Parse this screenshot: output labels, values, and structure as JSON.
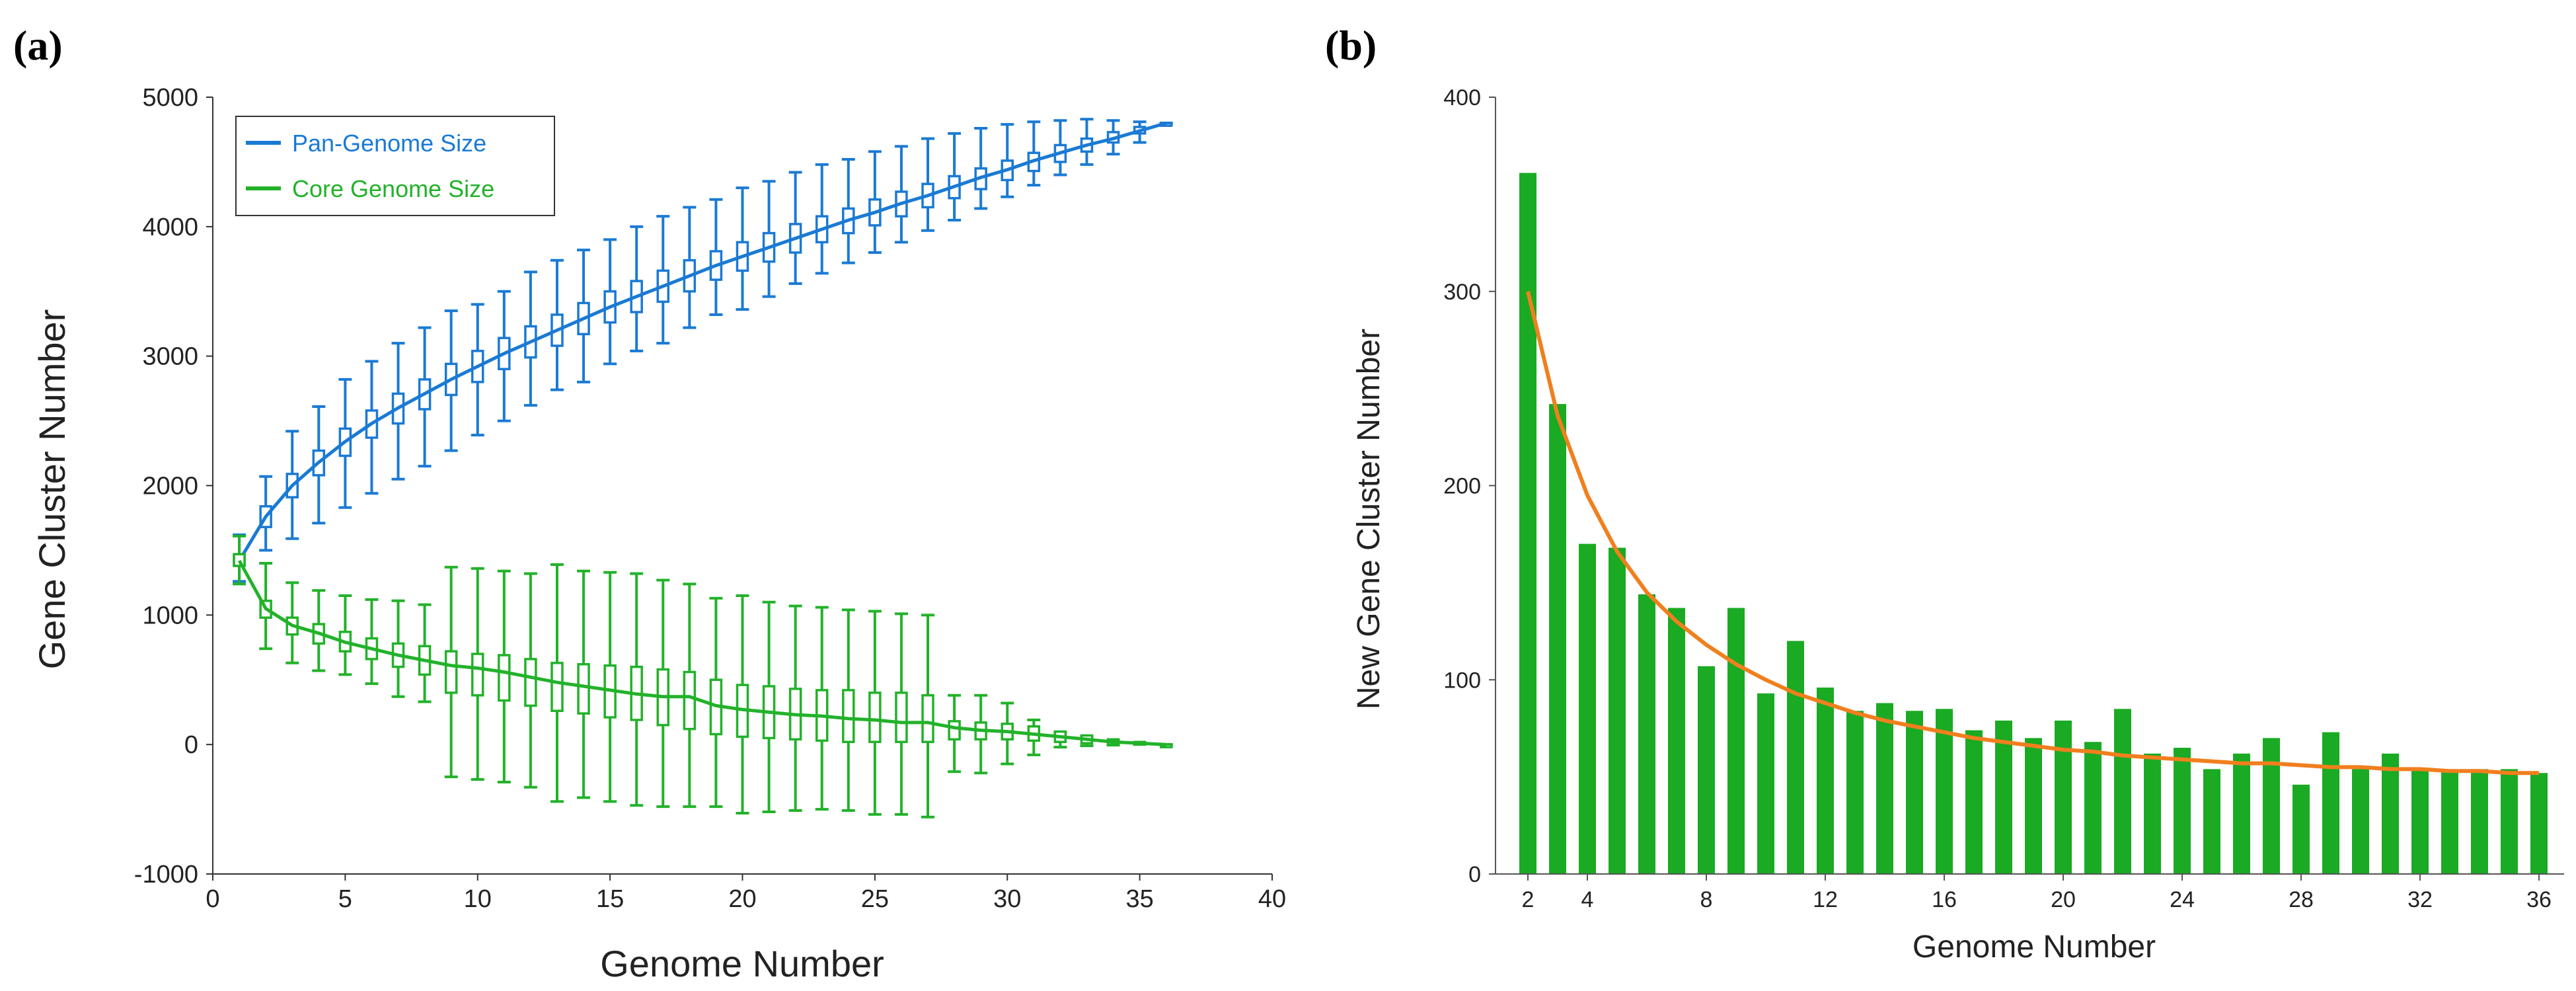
{
  "chart_data": [
    {
      "panel": "(a)",
      "type": "line",
      "xlabel": "Genome Number",
      "ylabel": "Gene Cluster Number",
      "xlim": [
        0,
        40
      ],
      "ylim": [
        -1000,
        5000
      ],
      "xticks": [
        "0",
        "5",
        "10",
        "15",
        "20",
        "25",
        "30",
        "35",
        "40"
      ],
      "yticks": [
        "-1000",
        "0",
        "1000",
        "2000",
        "3000",
        "4000",
        "5000"
      ],
      "legend_position": "top-left",
      "series": [
        {
          "name": "Pan-Genome Size",
          "color": "#1a7ad4",
          "style": "boxplot-with-fit-line",
          "x": [
            1,
            2,
            3,
            4,
            5,
            6,
            7,
            8,
            9,
            10,
            11,
            12,
            13,
            14,
            15,
            16,
            17,
            18,
            19,
            20,
            21,
            22,
            23,
            24,
            25,
            26,
            27,
            28,
            29,
            30,
            31,
            32,
            33,
            34,
            35,
            36
          ],
          "median": [
            1420,
            1760,
            2000,
            2180,
            2340,
            2480,
            2600,
            2710,
            2820,
            2920,
            3020,
            3110,
            3200,
            3290,
            3380,
            3460,
            3540,
            3620,
            3700,
            3770,
            3840,
            3910,
            3980,
            4050,
            4110,
            4180,
            4240,
            4310,
            4380,
            4440,
            4510,
            4570,
            4630,
            4680,
            4740,
            4800
          ],
          "q1": [
            1380,
            1680,
            1910,
            2080,
            2230,
            2370,
            2480,
            2590,
            2700,
            2800,
            2900,
            2990,
            3080,
            3170,
            3260,
            3340,
            3420,
            3500,
            3590,
            3660,
            3730,
            3800,
            3880,
            3950,
            4010,
            4080,
            4150,
            4220,
            4290,
            4360,
            4430,
            4500,
            4580,
            4650,
            4720,
            4800
          ],
          "q3": [
            1470,
            1840,
            2090,
            2270,
            2440,
            2580,
            2710,
            2820,
            2940,
            3040,
            3140,
            3230,
            3320,
            3410,
            3500,
            3580,
            3660,
            3740,
            3810,
            3880,
            3950,
            4020,
            4080,
            4140,
            4210,
            4270,
            4330,
            4390,
            4450,
            4510,
            4570,
            4630,
            4680,
            4730,
            4770,
            4800
          ],
          "whisker_low": [
            1260,
            1500,
            1590,
            1710,
            1830,
            1940,
            2050,
            2150,
            2270,
            2390,
            2500,
            2620,
            2740,
            2800,
            2940,
            3040,
            3100,
            3220,
            3320,
            3360,
            3460,
            3560,
            3640,
            3720,
            3800,
            3880,
            3970,
            4050,
            4140,
            4230,
            4320,
            4400,
            4480,
            4560,
            4650,
            4800
          ],
          "whisker_high": [
            1620,
            2070,
            2420,
            2610,
            2820,
            2960,
            3100,
            3220,
            3350,
            3400,
            3500,
            3650,
            3740,
            3820,
            3900,
            4000,
            4080,
            4150,
            4210,
            4300,
            4350,
            4420,
            4480,
            4520,
            4580,
            4620,
            4680,
            4720,
            4760,
            4790,
            4810,
            4820,
            4830,
            4820,
            4810,
            4800
          ],
          "fit": [
            1420,
            1760,
            2000,
            2180,
            2340,
            2480,
            2600,
            2710,
            2820,
            2920,
            3020,
            3110,
            3200,
            3290,
            3380,
            3460,
            3540,
            3620,
            3700,
            3770,
            3840,
            3910,
            3980,
            4050,
            4110,
            4180,
            4240,
            4310,
            4380,
            4440,
            4510,
            4570,
            4630,
            4680,
            4740,
            4800
          ]
        },
        {
          "name": "Core Genome Size",
          "color": "#22b22a",
          "style": "boxplot-with-fit-line",
          "x": [
            1,
            2,
            3,
            4,
            5,
            6,
            7,
            8,
            9,
            10,
            11,
            12,
            13,
            14,
            15,
            16,
            17,
            18,
            19,
            20,
            21,
            22,
            23,
            24,
            25,
            26,
            27,
            28,
            29,
            30,
            31,
            32,
            33,
            34,
            35,
            36
          ],
          "median": [
            1420,
            1050,
            920,
            860,
            790,
            740,
            690,
            650,
            610,
            590,
            560,
            520,
            480,
            450,
            420,
            390,
            370,
            370,
            300,
            270,
            250,
            230,
            220,
            200,
            190,
            170,
            170,
            130,
            110,
            100,
            80,
            60,
            40,
            20,
            10,
            0
          ],
          "q1": [
            1380,
            980,
            850,
            780,
            720,
            660,
            600,
            540,
            400,
            380,
            340,
            300,
            260,
            240,
            210,
            190,
            150,
            120,
            80,
            60,
            50,
            40,
            30,
            20,
            20,
            20,
            20,
            40,
            40,
            40,
            30,
            20,
            10,
            0,
            0,
            0
          ],
          "q3": [
            1470,
            1110,
            980,
            930,
            870,
            820,
            780,
            760,
            720,
            700,
            690,
            660,
            630,
            620,
            610,
            600,
            580,
            560,
            500,
            460,
            450,
            430,
            420,
            420,
            400,
            400,
            380,
            180,
            170,
            160,
            140,
            100,
            70,
            40,
            20,
            0
          ],
          "whisker_low": [
            1240,
            740,
            630,
            570,
            540,
            470,
            370,
            330,
            -250,
            -270,
            -290,
            -330,
            -440,
            -410,
            -440,
            -470,
            -480,
            -480,
            -480,
            -530,
            -520,
            -510,
            -500,
            -510,
            -540,
            -540,
            -560,
            -210,
            -220,
            -150,
            -80,
            -20,
            -10,
            -5,
            0,
            0
          ],
          "whisker_high": [
            1610,
            1400,
            1250,
            1190,
            1150,
            1120,
            1110,
            1080,
            1370,
            1360,
            1340,
            1320,
            1390,
            1340,
            1330,
            1320,
            1270,
            1240,
            1130,
            1150,
            1100,
            1070,
            1060,
            1040,
            1030,
            1010,
            1000,
            380,
            380,
            320,
            190,
            90,
            60,
            30,
            10,
            0
          ],
          "fit": [
            1420,
            1050,
            920,
            860,
            790,
            740,
            690,
            650,
            610,
            590,
            560,
            520,
            480,
            450,
            420,
            390,
            370,
            370,
            300,
            270,
            250,
            230,
            220,
            200,
            190,
            170,
            170,
            130,
            110,
            100,
            80,
            60,
            40,
            20,
            10,
            0
          ]
        }
      ]
    },
    {
      "panel": "(b)",
      "type": "bar",
      "xlabel": "Genome Number",
      "ylabel": "New Gene Cluster Number",
      "ylim": [
        0,
        400
      ],
      "yticks": [
        "0",
        "100",
        "200",
        "300",
        "400"
      ],
      "xticks": [
        "2",
        "4",
        "8",
        "12",
        "16",
        "20",
        "24",
        "28",
        "32",
        "36"
      ],
      "categories": [
        2,
        3,
        4,
        5,
        6,
        7,
        8,
        9,
        10,
        11,
        12,
        13,
        14,
        15,
        16,
        17,
        18,
        19,
        20,
        21,
        22,
        23,
        24,
        25,
        26,
        27,
        28,
        29,
        30,
        31,
        32,
        33,
        34,
        35,
        36
      ],
      "series": [
        {
          "name": "New Gene Cluster Number",
          "color": "#1aaa23",
          "values": [
            361,
            242,
            170,
            168,
            144,
            137,
            107,
            137,
            93,
            120,
            96,
            84,
            88,
            84,
            85,
            74,
            79,
            70,
            79,
            68,
            85,
            62,
            65,
            54,
            62,
            70,
            46,
            73,
            54,
            62,
            54,
            53,
            54,
            54,
            52
          ]
        },
        {
          "name": "Fit",
          "type": "line",
          "color": "#f07f1e",
          "values": [
            300,
            236,
            195,
            166,
            145,
            130,
            118,
            108,
            100,
            93,
            88,
            83,
            79,
            76,
            73,
            70,
            68,
            66,
            64,
            63,
            61,
            60,
            59,
            58,
            57,
            57,
            56,
            55,
            55,
            54,
            54,
            53,
            53,
            52,
            52
          ]
        }
      ]
    }
  ]
}
